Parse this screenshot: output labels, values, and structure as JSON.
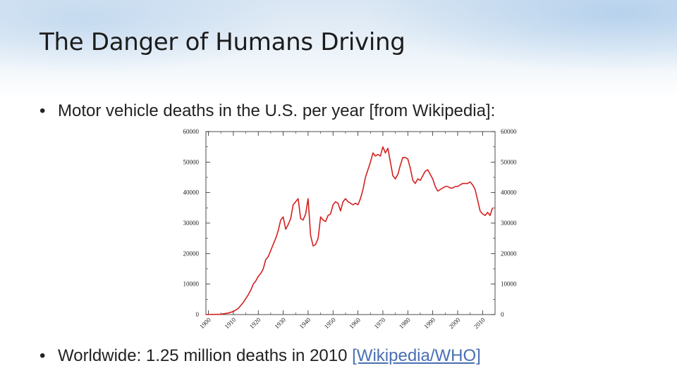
{
  "slide": {
    "title": "The Danger of Humans Driving",
    "bullets": [
      {
        "text": "Motor vehicle deaths in the U.S. per year [from Wikipedia]:"
      },
      {
        "text": "Worldwide: 1.25 million deaths in 2010 ",
        "link": "[Wikipedia/WHO]"
      }
    ],
    "bullet_glyph": "•"
  },
  "colors": {
    "series": "#d42020",
    "axis": "#222222"
  },
  "chart_data": {
    "type": "line",
    "title": "",
    "xlabel": "",
    "ylabel": "",
    "xlim": [
      1899,
      2015
    ],
    "ylim": [
      0,
      60000
    ],
    "x_ticks": [
      "1900",
      "1910",
      "1920",
      "1930",
      "1940",
      "1950",
      "1960",
      "1970",
      "1980",
      "1990",
      "2000",
      "2010"
    ],
    "y_ticks": [
      "0",
      "10000",
      "20000",
      "30000",
      "40000",
      "50000",
      "60000"
    ],
    "right_axis_ticks": [
      "0",
      "10000",
      "20000",
      "30000",
      "40000",
      "50000",
      "60000"
    ],
    "grid": false,
    "series": [
      {
        "x": [
          1899,
          1905,
          1908,
          1910,
          1912,
          1914,
          1916,
          1917,
          1918,
          1919,
          1920,
          1921,
          1922,
          1923,
          1924,
          1925,
          1926,
          1927,
          1928,
          1929,
          1930,
          1931,
          1932,
          1933,
          1934,
          1935,
          1936,
          1937,
          1938,
          1939,
          1940,
          1941,
          1942,
          1943,
          1944,
          1945,
          1946,
          1947,
          1948,
          1949,
          1950,
          1951,
          1952,
          1953,
          1954,
          1955,
          1956,
          1957,
          1958,
          1959,
          1960,
          1961,
          1962,
          1963,
          1964,
          1965,
          1966,
          1967,
          1968,
          1969,
          1970,
          1971,
          1972,
          1973,
          1974,
          1975,
          1976,
          1977,
          1978,
          1979,
          1980,
          1981,
          1982,
          1983,
          1984,
          1985,
          1986,
          1987,
          1988,
          1989,
          1990,
          1991,
          1992,
          1993,
          1994,
          1995,
          1996,
          1997,
          1998,
          1999,
          2000,
          2001,
          2002,
          2003,
          2004,
          2005,
          2006,
          2007,
          2008,
          2009,
          2010,
          2011,
          2012,
          2013,
          2014
        ],
        "y": [
          0,
          100,
          500,
          1000,
          2000,
          4000,
          6500,
          8000,
          10000,
          11000,
          12500,
          13500,
          15000,
          18000,
          19000,
          21000,
          23000,
          25000,
          27500,
          31000,
          32000,
          28000,
          29500,
          31500,
          36000,
          37000,
          38000,
          31500,
          31000,
          33000,
          38000,
          26000,
          22500,
          23000,
          25000,
          32000,
          31000,
          30500,
          32500,
          33000,
          36000,
          37000,
          36500,
          34000,
          37000,
          38000,
          37000,
          36500,
          36000,
          36500,
          36000,
          38000,
          41000,
          45000,
          47500,
          50000,
          53000,
          52000,
          52500,
          52000,
          55000,
          53000,
          54500,
          50000,
          45500,
          44500,
          46000,
          49000,
          51500,
          51500,
          51000,
          48000,
          44000,
          43000,
          44500,
          44000,
          45500,
          47000,
          47500,
          46000,
          44500,
          42000,
          40500,
          41000,
          41500,
          42000,
          42000,
          41500,
          41500,
          42000,
          42000,
          42500,
          43000,
          43000,
          43000,
          43500,
          42500,
          41000,
          37500,
          34000,
          33000,
          32500,
          33500,
          32500,
          35000
        ]
      }
    ]
  }
}
